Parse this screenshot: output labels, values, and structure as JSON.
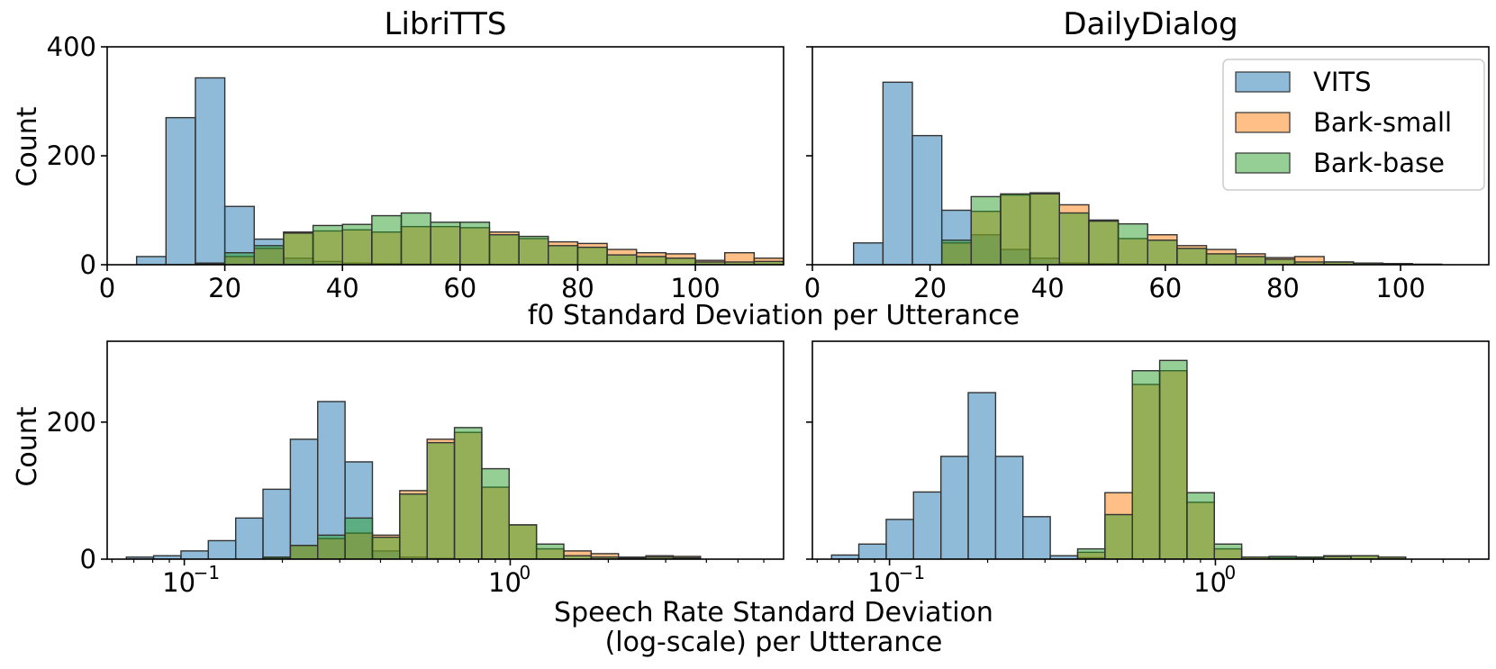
{
  "colors": {
    "VITS": "#1f77b4",
    "Bark-small": "#ff7f0e",
    "Bark-base": "#2ca02c",
    "edge": "#333333"
  },
  "legend": {
    "entries": [
      "VITS",
      "Bark-small",
      "Bark-base"
    ],
    "placement": "top-right of DailyDialog f0 panel"
  },
  "f0_xlabel": "f0 Standard Deviation per Utterance",
  "sr_xlabel_line1": "Speech Rate Standard Deviation",
  "sr_xlabel_line2": "(log-scale) per Utterance",
  "chart_data": [
    {
      "id": "f0-librittts",
      "type": "bar",
      "title": "LibriTTS",
      "ylabel": "Count",
      "xlim": [
        0,
        115
      ],
      "ylim": [
        0,
        400
      ],
      "xticks": [
        "0",
        "20",
        "40",
        "60",
        "80",
        "100"
      ],
      "yticks": [
        "0",
        "200",
        "400"
      ],
      "bin_edges": [
        5,
        10,
        15,
        20,
        25,
        30,
        35,
        40,
        45,
        50,
        55,
        60,
        65,
        70,
        75,
        80,
        85,
        90,
        95,
        100,
        105,
        110,
        115
      ],
      "series": [
        {
          "name": "VITS",
          "values": [
            15,
            270,
            343,
            107,
            47,
            12,
            6,
            3,
            2,
            1,
            1,
            0,
            0,
            0,
            0,
            0,
            0,
            0,
            0,
            0,
            0,
            0
          ]
        },
        {
          "name": "Bark-small",
          "values": [
            0,
            0,
            3,
            15,
            30,
            60,
            62,
            64,
            60,
            70,
            70,
            68,
            60,
            48,
            42,
            39,
            28,
            22,
            20,
            8,
            22,
            12
          ]
        },
        {
          "name": "Bark-base",
          "values": [
            0,
            0,
            2,
            22,
            35,
            58,
            72,
            74,
            90,
            95,
            78,
            78,
            55,
            52,
            35,
            32,
            18,
            15,
            12,
            5,
            5,
            6
          ]
        }
      ]
    },
    {
      "id": "f0-dailydialog",
      "type": "bar",
      "title": "DailyDialog",
      "ylabel": "",
      "xlim": [
        0,
        115
      ],
      "ylim": [
        0,
        400
      ],
      "xticks": [
        "0",
        "20",
        "40",
        "60",
        "80",
        "100"
      ],
      "bin_edges": [
        7,
        12,
        17,
        22,
        27,
        32,
        37,
        42,
        47,
        52,
        57,
        62,
        67,
        72,
        77,
        82,
        87,
        92,
        97,
        102,
        107
      ],
      "series": [
        {
          "name": "VITS",
          "values": [
            40,
            335,
            237,
            100,
            55,
            28,
            12,
            3,
            2,
            1,
            0,
            0,
            0,
            0,
            0,
            0,
            0,
            0,
            0,
            0
          ]
        },
        {
          "name": "Bark-small",
          "values": [
            0,
            0,
            0,
            40,
            98,
            128,
            132,
            110,
            82,
            48,
            55,
            35,
            28,
            20,
            13,
            15,
            5,
            3,
            2,
            0
          ]
        },
        {
          "name": "Bark-base",
          "values": [
            0,
            0,
            0,
            45,
            125,
            130,
            130,
            95,
            80,
            75,
            45,
            30,
            20,
            15,
            10,
            5,
            5,
            3,
            2,
            1
          ]
        }
      ]
    },
    {
      "id": "sr-librittts",
      "type": "bar",
      "title": "",
      "ylabel": "Count",
      "xscale": "log",
      "xlim": [
        0.058,
        6.9
      ],
      "ylim": [
        0,
        318
      ],
      "yticks": [
        "0",
        "200"
      ],
      "bin_edges": [
        0.0664,
        0.0805,
        0.0977,
        0.1185,
        0.1438,
        0.1744,
        0.2116,
        0.2567,
        0.3114,
        0.3778,
        0.4583,
        0.556,
        0.6745,
        0.8182,
        0.9926,
        1.2041,
        1.4607,
        1.772,
        2.1497,
        2.6078,
        3.1636,
        3.8378,
        4.6557,
        5.648,
        6.8517
      ],
      "series": [
        {
          "name": "VITS",
          "values": [
            3,
            5,
            12,
            27,
            60,
            102,
            175,
            230,
            142,
            12,
            3,
            1,
            0,
            0,
            0,
            0,
            0,
            0,
            0,
            0,
            0,
            0,
            0,
            0
          ]
        },
        {
          "name": "Bark-small",
          "values": [
            0,
            0,
            0,
            0,
            0,
            2,
            20,
            30,
            38,
            35,
            100,
            175,
            185,
            105,
            50,
            15,
            12,
            8,
            3,
            5,
            4,
            0,
            0,
            0
          ]
        },
        {
          "name": "Bark-base",
          "values": [
            0,
            0,
            0,
            0,
            0,
            3,
            20,
            35,
            60,
            32,
            95,
            170,
            192,
            132,
            50,
            22,
            5,
            3,
            2,
            3,
            2,
            0,
            0,
            0
          ]
        }
      ]
    },
    {
      "id": "sr-dailydialog",
      "type": "bar",
      "title": "",
      "ylabel": "",
      "xscale": "log",
      "xlim": [
        0.058,
        6.9
      ],
      "ylim": [
        0,
        318
      ],
      "bin_edges": [
        0.0664,
        0.0805,
        0.0977,
        0.1185,
        0.1438,
        0.1744,
        0.2116,
        0.2567,
        0.3114,
        0.3778,
        0.4583,
        0.556,
        0.6745,
        0.8182,
        0.9926,
        1.2041,
        1.4607,
        1.772,
        2.1497,
        2.6078,
        3.1636,
        3.8378,
        4.6557,
        5.648,
        6.8517
      ],
      "series": [
        {
          "name": "VITS",
          "values": [
            6,
            22,
            58,
            98,
            150,
            243,
            150,
            62,
            5,
            2,
            0,
            0,
            0,
            0,
            0,
            0,
            0,
            0,
            0,
            0,
            0,
            0,
            0,
            0
          ]
        },
        {
          "name": "Bark-small",
          "values": [
            0,
            0,
            0,
            0,
            0,
            0,
            0,
            0,
            0,
            10,
            97,
            255,
            275,
            83,
            15,
            3,
            2,
            2,
            5,
            5,
            3,
            0,
            0,
            0
          ]
        },
        {
          "name": "Bark-base",
          "values": [
            0,
            0,
            0,
            0,
            0,
            0,
            0,
            0,
            0,
            15,
            65,
            275,
            290,
            97,
            22,
            3,
            4,
            3,
            4,
            5,
            3,
            0,
            0,
            0
          ]
        }
      ]
    }
  ]
}
